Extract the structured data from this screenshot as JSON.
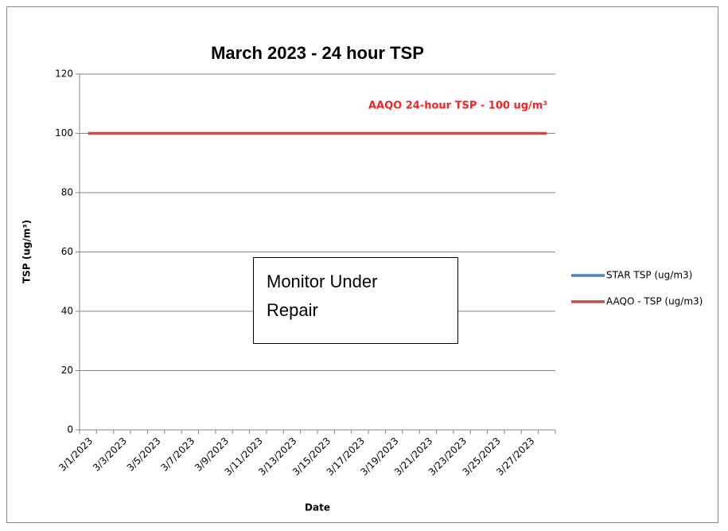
{
  "chart_data": {
    "type": "line",
    "title": "March 2023 - 24 hour TSP",
    "x_label": "Date",
    "y_label": "TSP (ug/m³)",
    "categories": [
      "3/1/2023",
      null,
      "3/3/2023",
      null,
      "3/5/2023",
      null,
      "3/7/2023",
      null,
      "3/9/2023",
      null,
      "3/11/2023",
      null,
      "3/13/2023",
      null,
      "3/15/2023",
      null,
      "3/17/2023",
      null,
      "3/19/2023",
      null,
      "3/21/2023",
      null,
      "3/23/2023",
      null,
      "3/25/2023",
      null,
      "3/27/2023",
      null
    ],
    "series": [
      {
        "name": "STAR TSP (ug/m3)",
        "color": "#4f81bd",
        "values": [
          null,
          null,
          null,
          null,
          null,
          null,
          null,
          null,
          null,
          null,
          null,
          null,
          null,
          null,
          null,
          null,
          null,
          null,
          null,
          null,
          null,
          null,
          null,
          null,
          null,
          null,
          null,
          null
        ]
      },
      {
        "name": "AAQO - TSP (ug/m3)",
        "color": "#c0504d",
        "values": [
          100,
          100,
          100,
          100,
          100,
          100,
          100,
          100,
          100,
          100,
          100,
          100,
          100,
          100,
          100,
          100,
          100,
          100,
          100,
          100,
          100,
          100,
          100,
          100,
          100,
          100,
          100,
          100
        ]
      }
    ],
    "ylim": [
      0,
      120
    ],
    "yticks": [
      0,
      20,
      40,
      60,
      80,
      100,
      120
    ],
    "grid": true,
    "legend": "right",
    "annotations": [
      "AAQO 24-hour TSP - 100 ug/m³",
      "Monitor Under Repair"
    ]
  }
}
